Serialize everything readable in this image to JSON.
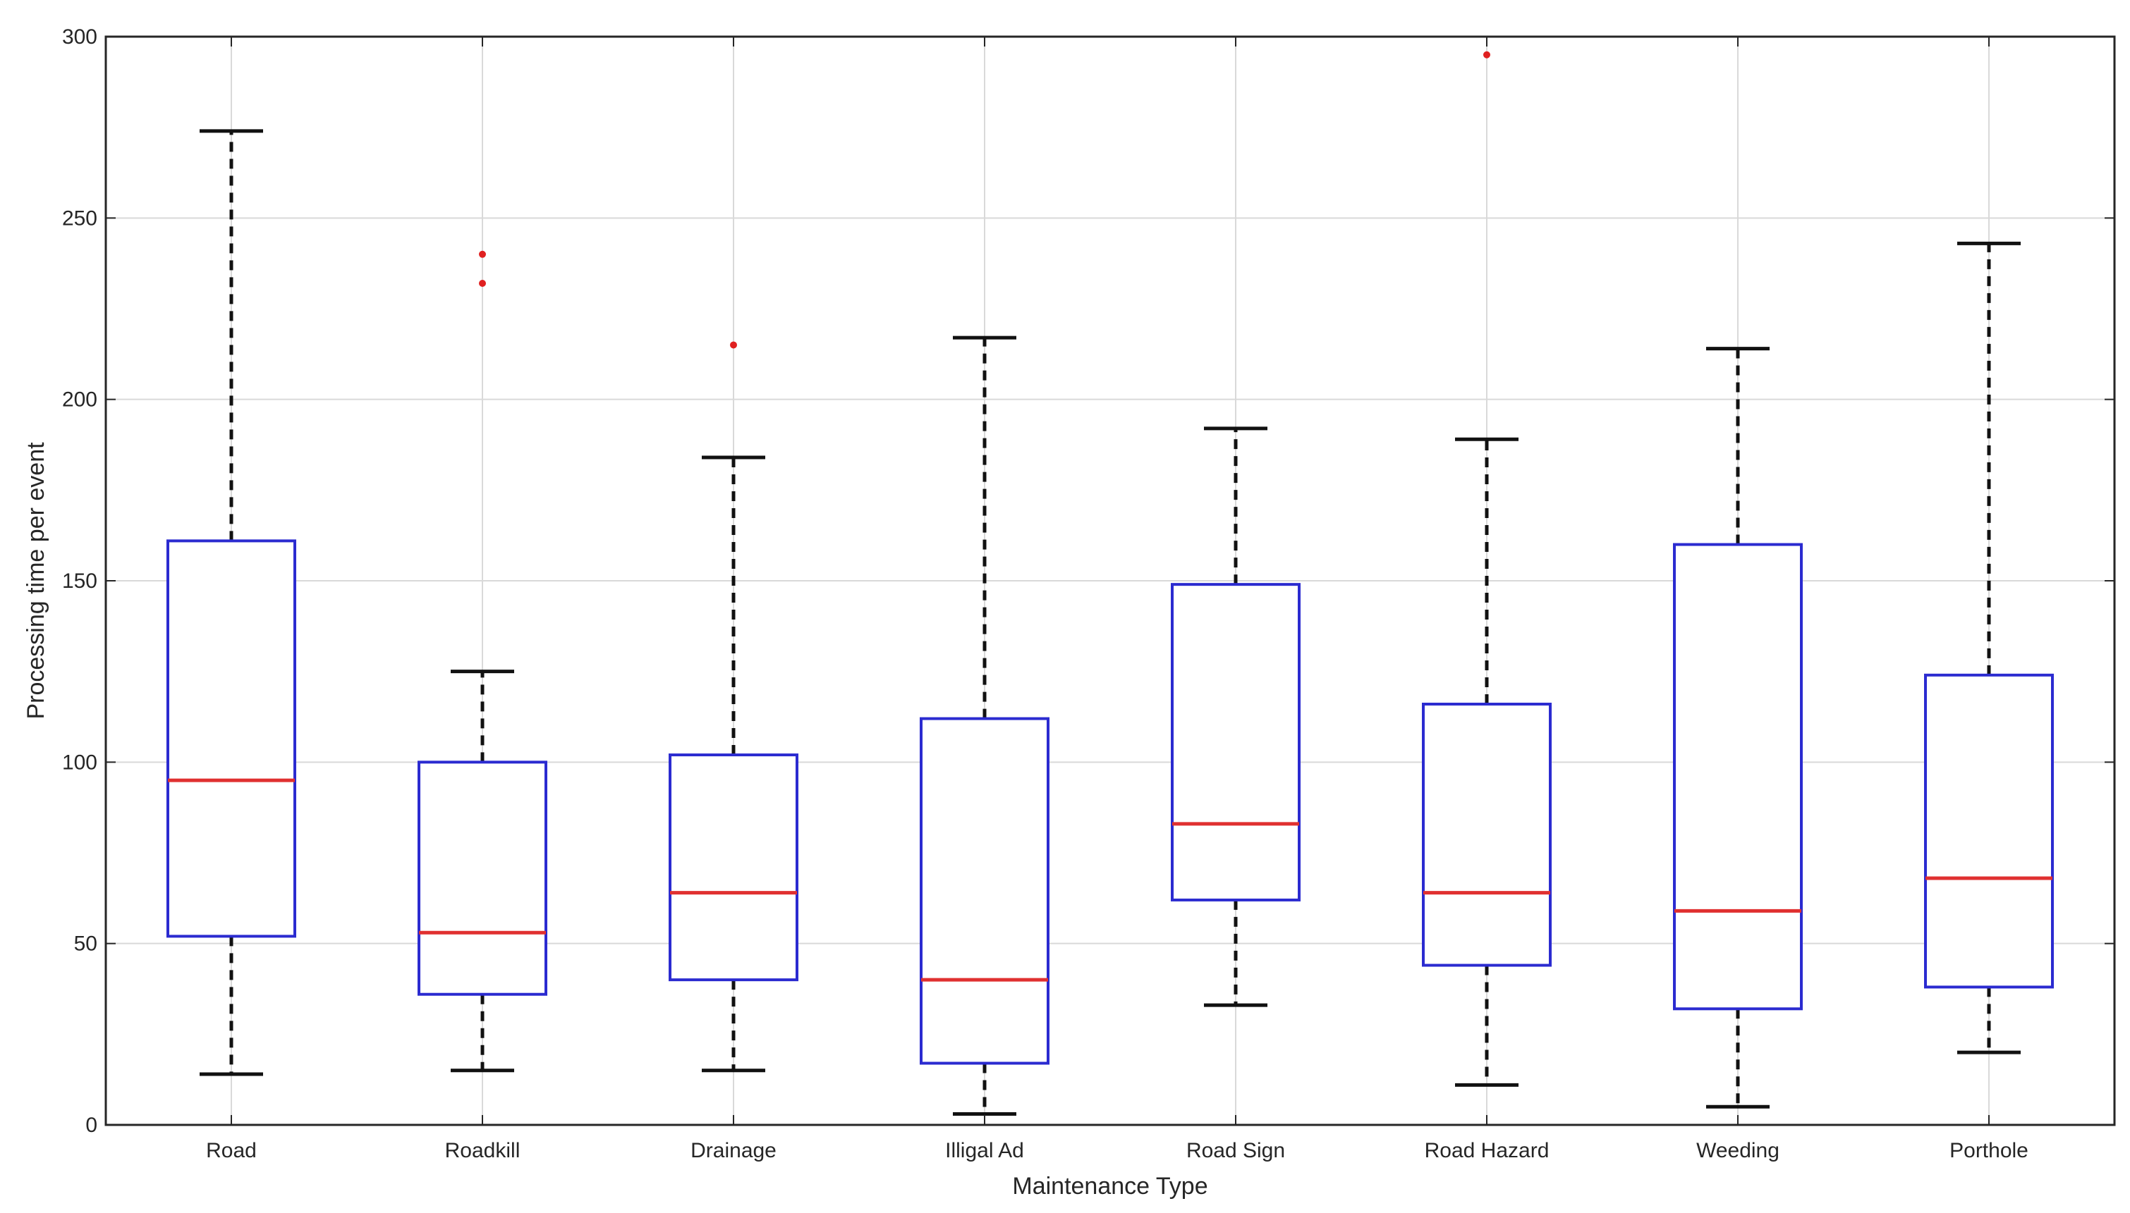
{
  "chart_data": {
    "type": "boxplot",
    "title": "",
    "xlabel": "Maintenance Type",
    "ylabel": "Processing time per event",
    "ylim": [
      0,
      300
    ],
    "yticks": [
      0,
      50,
      100,
      150,
      200,
      250,
      300
    ],
    "grid": true,
    "categories": [
      "Road",
      "Roadkill",
      "Drainage",
      "Illigal Ad",
      "Road Sign",
      "Road Hazard",
      "Weeding",
      "Porthole"
    ],
    "boxes": [
      {
        "category": "Road",
        "whisker_low": 14,
        "q1": 52,
        "median": 95,
        "q3": 161,
        "whisker_high": 274,
        "outliers": []
      },
      {
        "category": "Roadkill",
        "whisker_low": 15,
        "q1": 36,
        "median": 53,
        "q3": 100,
        "whisker_high": 125,
        "outliers": [
          240,
          232
        ]
      },
      {
        "category": "Drainage",
        "whisker_low": 15,
        "q1": 40,
        "median": 64,
        "q3": 102,
        "whisker_high": 184,
        "outliers": [
          215
        ]
      },
      {
        "category": "Illigal Ad",
        "whisker_low": 3,
        "q1": 17,
        "median": 40,
        "q3": 112,
        "whisker_high": 217,
        "outliers": []
      },
      {
        "category": "Road Sign",
        "whisker_low": 33,
        "q1": 62,
        "median": 83,
        "q3": 149,
        "whisker_high": 192,
        "outliers": []
      },
      {
        "category": "Road Hazard",
        "whisker_low": 11,
        "q1": 44,
        "median": 64,
        "q3": 116,
        "whisker_high": 189,
        "outliers": [
          295
        ]
      },
      {
        "category": "Weeding",
        "whisker_low": 5,
        "q1": 32,
        "median": 59,
        "q3": 160,
        "whisker_high": 214,
        "outliers": []
      },
      {
        "category": "Porthole",
        "whisker_low": 20,
        "q1": 38,
        "median": 68,
        "q3": 124,
        "whisker_high": 243,
        "outliers": []
      }
    ],
    "colors": {
      "box": "#2b2bd0",
      "median": "#e03030",
      "whisker": "#111111",
      "outlier": "#e02020",
      "grid": "#d9d9d9",
      "axis": "#262626"
    }
  }
}
